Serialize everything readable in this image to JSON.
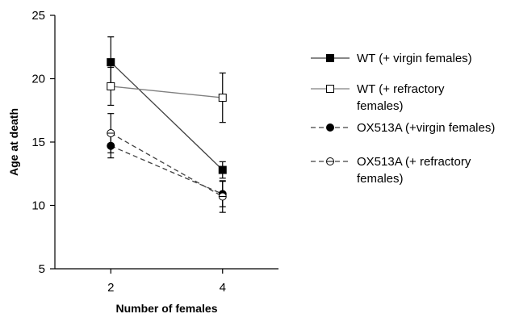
{
  "chart_data": {
    "type": "line",
    "title": "",
    "xlabel": "Number of females",
    "ylabel": "Age at death",
    "x": [
      2,
      4
    ],
    "xlim": [
      1,
      5
    ],
    "ylim": [
      5,
      25
    ],
    "yticks": [
      5,
      10,
      15,
      20,
      25
    ],
    "xticks": [
      2,
      4
    ],
    "grid": false,
    "legend_position": "right",
    "series": [
      {
        "name": "WT (+ virgin females)",
        "values": [
          21.3,
          12.8
        ],
        "errors": [
          2.0,
          0.65
        ],
        "line_style": "solid",
        "line_color": "#404040",
        "marker": "square-filled"
      },
      {
        "name": "WT (+ refractory females)",
        "values": [
          19.4,
          18.5
        ],
        "errors": [
          1.5,
          1.95
        ],
        "line_style": "solid",
        "line_color": "#808080",
        "marker": "square-open"
      },
      {
        "name": "OX513A (+virgin females)",
        "values": [
          14.7,
          10.9
        ],
        "errors": [
          0.95,
          1.0
        ],
        "line_style": "dashed",
        "line_color": "#404040",
        "marker": "circle-filled"
      },
      {
        "name": "OX513A (+ refractory females)",
        "values": [
          15.7,
          10.7
        ],
        "errors": [
          1.55,
          1.25
        ],
        "line_style": "dashed",
        "line_color": "#404040",
        "marker": "circle-open"
      }
    ]
  }
}
